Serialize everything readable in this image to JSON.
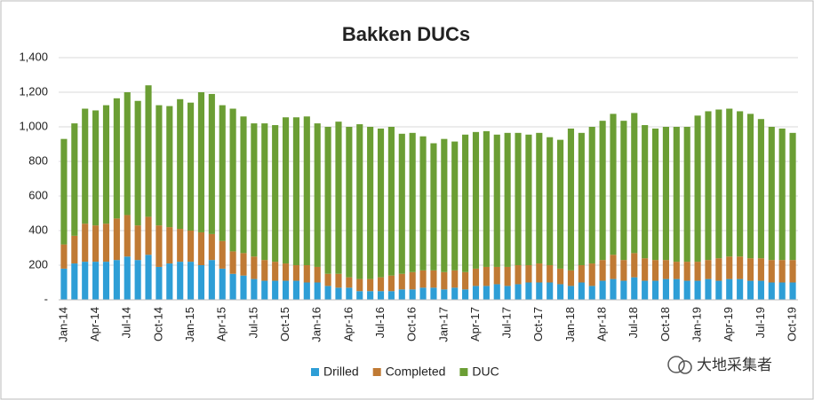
{
  "chart_data": {
    "type": "stacked_bar",
    "title": "Bakken DUCs",
    "categories": [
      "Jan-14",
      null,
      null,
      "Apr-14",
      null,
      null,
      "Jul-14",
      null,
      null,
      "Oct-14",
      null,
      null,
      "Jan-15",
      null,
      null,
      "Apr-15",
      null,
      null,
      "Jul-15",
      null,
      null,
      "Oct-15",
      null,
      null,
      "Jan-16",
      null,
      null,
      "Apr-16",
      null,
      null,
      "Jul-16",
      null,
      null,
      "Oct-16",
      null,
      null,
      "Jan-17",
      null,
      null,
      "Apr-17",
      null,
      null,
      "Jul-17",
      null,
      null,
      "Oct-17",
      null,
      null,
      "Jan-18",
      null,
      null,
      "Apr-18",
      null,
      null,
      "Jul-18",
      null,
      null,
      "Oct-18",
      null,
      null,
      "Jan-19",
      null,
      null,
      "Apr-19",
      null,
      null,
      "Jul-19",
      null,
      null,
      "Oct-19"
    ],
    "series": [
      {
        "name": "Drilled",
        "color": "#2e9ed6",
        "values": [
          180,
          210,
          220,
          220,
          220,
          230,
          250,
          230,
          260,
          190,
          210,
          220,
          220,
          200,
          230,
          180,
          150,
          140,
          120,
          110,
          110,
          110,
          110,
          100,
          100,
          80,
          70,
          70,
          50,
          50,
          50,
          50,
          60,
          60,
          70,
          70,
          60,
          70,
          60,
          80,
          80,
          90,
          80,
          90,
          100,
          100,
          100,
          90,
          80,
          100,
          80,
          110,
          120,
          110,
          130,
          110,
          110,
          120,
          120,
          110,
          110,
          120,
          110,
          120,
          120,
          110,
          110,
          100,
          100,
          100
        ]
      },
      {
        "name": "Completed",
        "color": "#c07a34",
        "values": [
          140,
          160,
          220,
          210,
          220,
          240,
          240,
          200,
          220,
          240,
          210,
          190,
          180,
          190,
          150,
          160,
          130,
          130,
          130,
          120,
          110,
          100,
          90,
          100,
          90,
          70,
          80,
          60,
          70,
          70,
          80,
          90,
          90,
          100,
          100,
          100,
          100,
          100,
          100,
          100,
          110,
          100,
          110,
          110,
          100,
          110,
          100,
          90,
          90,
          100,
          130,
          120,
          140,
          120,
          140,
          130,
          120,
          110,
          100,
          110,
          110,
          110,
          130,
          130,
          130,
          130,
          130,
          130,
          130,
          130
        ]
      },
      {
        "name": "DUC",
        "color": "#6b9e34",
        "values": [
          610,
          650,
          665,
          665,
          685,
          695,
          710,
          720,
          760,
          695,
          700,
          750,
          740,
          810,
          810,
          785,
          825,
          790,
          770,
          790,
          790,
          845,
          855,
          860,
          830,
          850,
          880,
          870,
          895,
          880,
          860,
          860,
          810,
          805,
          775,
          735,
          770,
          745,
          795,
          790,
          785,
          765,
          775,
          765,
          755,
          755,
          740,
          745,
          820,
          765,
          790,
          805,
          815,
          805,
          810,
          770,
          760,
          770,
          780,
          780,
          845,
          860,
          860,
          855,
          840,
          835,
          805,
          770,
          760,
          735
        ]
      }
    ],
    "ylim": [
      0,
      1400
    ],
    "yticks": [
      {
        "value": 0,
        "label": "-"
      },
      200,
      400,
      600,
      800,
      {
        "value": 1000,
        "label": "1,000"
      },
      {
        "value": 1200,
        "label": "1,200"
      },
      {
        "value": 1400,
        "label": "1,400"
      }
    ],
    "grid": true,
    "legend": "bottom"
  },
  "watermark": "大地采集者"
}
